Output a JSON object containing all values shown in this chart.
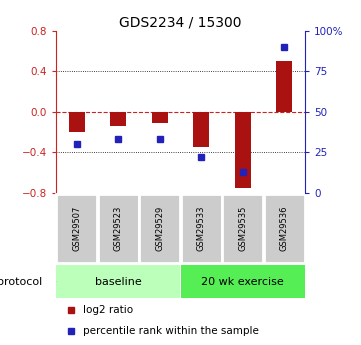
{
  "title": "GDS2234 / 15300",
  "samples": [
    "GSM29507",
    "GSM29523",
    "GSM29529",
    "GSM29533",
    "GSM29535",
    "GSM29536"
  ],
  "log2_ratio": [
    -0.2,
    -0.14,
    -0.11,
    -0.35,
    -0.75,
    0.5
  ],
  "percentile_rank": [
    30,
    33,
    33,
    22,
    13,
    90
  ],
  "ylim_left": [
    -0.8,
    0.8
  ],
  "yticks_left": [
    -0.8,
    -0.4,
    0,
    0.4,
    0.8
  ],
  "yticks_right": [
    0,
    25,
    50,
    75,
    100
  ],
  "bar_color": "#aa1111",
  "dot_color": "#2222bb",
  "bar_width": 0.38,
  "protocol_groups": [
    {
      "label": "baseline",
      "indices": [
        0,
        1,
        2
      ],
      "color": "#bbffbb"
    },
    {
      "label": "20 wk exercise",
      "indices": [
        3,
        4,
        5
      ],
      "color": "#55ee55"
    }
  ],
  "protocol_label": "protocol",
  "legend_items": [
    {
      "label": "log2 ratio",
      "color": "#aa1111"
    },
    {
      "label": "percentile rank within the sample",
      "color": "#2222bb"
    }
  ],
  "grid_dotted_color": "black",
  "zero_line_color": "#cc2222",
  "tick_label_color_left": "#cc2222",
  "tick_label_color_right": "#2222bb",
  "background_color": "#ffffff",
  "sample_box_color": "#cccccc",
  "sample_box_edge": "#ffffff"
}
